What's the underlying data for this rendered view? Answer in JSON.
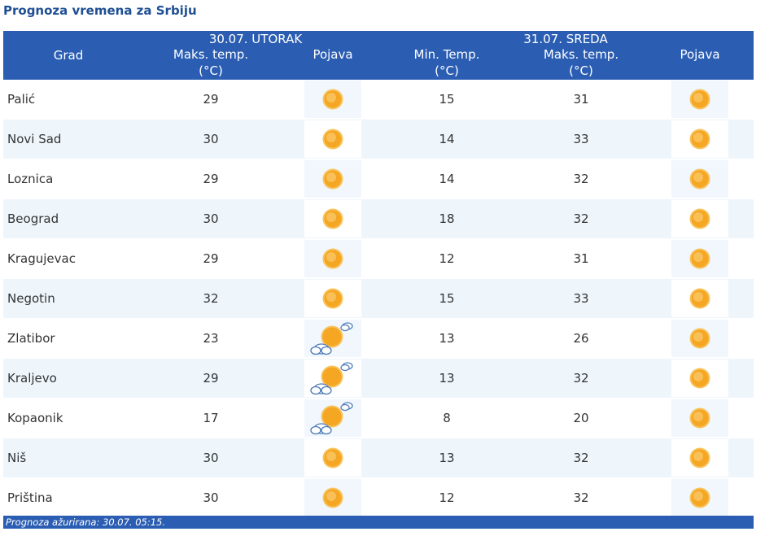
{
  "page": {
    "title": "Prognoza vremena za Srbiju"
  },
  "header": {
    "city_col": "Grad",
    "day1": {
      "label": "30.07. UTORAK",
      "max_label": "Maks. temp.",
      "max_unit": "(°C)",
      "weather_label": "Pojava"
    },
    "day2": {
      "label": "31.07. SREDA",
      "min_label": "Min. Temp.",
      "min_unit": "(°C)",
      "max_label": "Maks. temp.",
      "max_unit": "(°C)",
      "weather_label": "Pojava"
    }
  },
  "rows": [
    {
      "city": "Palić",
      "d1_max": "29",
      "d1_icon": "sun-icon",
      "d2_min": "15",
      "d2_max": "31",
      "d2_icon": "sun-icon"
    },
    {
      "city": "Novi Sad",
      "d1_max": "30",
      "d1_icon": "sun-icon",
      "d2_min": "14",
      "d2_max": "33",
      "d2_icon": "sun-icon"
    },
    {
      "city": "Loznica",
      "d1_max": "29",
      "d1_icon": "sun-icon",
      "d2_min": "14",
      "d2_max": "32",
      "d2_icon": "sun-icon"
    },
    {
      "city": "Beograd",
      "d1_max": "30",
      "d1_icon": "sun-icon",
      "d2_min": "18",
      "d2_max": "32",
      "d2_icon": "sun-icon"
    },
    {
      "city": "Kragujevac",
      "d1_max": "29",
      "d1_icon": "sun-icon",
      "d2_min": "12",
      "d2_max": "31",
      "d2_icon": "sun-icon"
    },
    {
      "city": "Negotin",
      "d1_max": "32",
      "d1_icon": "sun-icon",
      "d2_min": "15",
      "d2_max": "33",
      "d2_icon": "sun-icon"
    },
    {
      "city": "Zlatibor",
      "d1_max": "23",
      "d1_icon": "partly-cloudy-icon",
      "d2_min": "13",
      "d2_max": "26",
      "d2_icon": "sun-icon"
    },
    {
      "city": "Kraljevo",
      "d1_max": "29",
      "d1_icon": "partly-cloudy-icon",
      "d2_min": "13",
      "d2_max": "32",
      "d2_icon": "sun-icon"
    },
    {
      "city": "Kopaonik",
      "d1_max": "17",
      "d1_icon": "partly-cloudy-icon",
      "d2_min": "8",
      "d2_max": "20",
      "d2_icon": "sun-icon"
    },
    {
      "city": "Niš",
      "d1_max": "30",
      "d1_icon": "sun-icon",
      "d2_min": "13",
      "d2_max": "32",
      "d2_icon": "sun-icon"
    },
    {
      "city": "Priština",
      "d1_max": "30",
      "d1_icon": "sun-icon",
      "d2_min": "12",
      "d2_max": "32",
      "d2_icon": "sun-icon"
    }
  ],
  "footer": {
    "updated": "Prognoza ažurirana:  30.07. 05:15."
  },
  "colors": {
    "header_bg": "#2b5eb3",
    "title": "#1e4f93",
    "row_alt": "#eef6fc",
    "sun": "#f5a623"
  }
}
